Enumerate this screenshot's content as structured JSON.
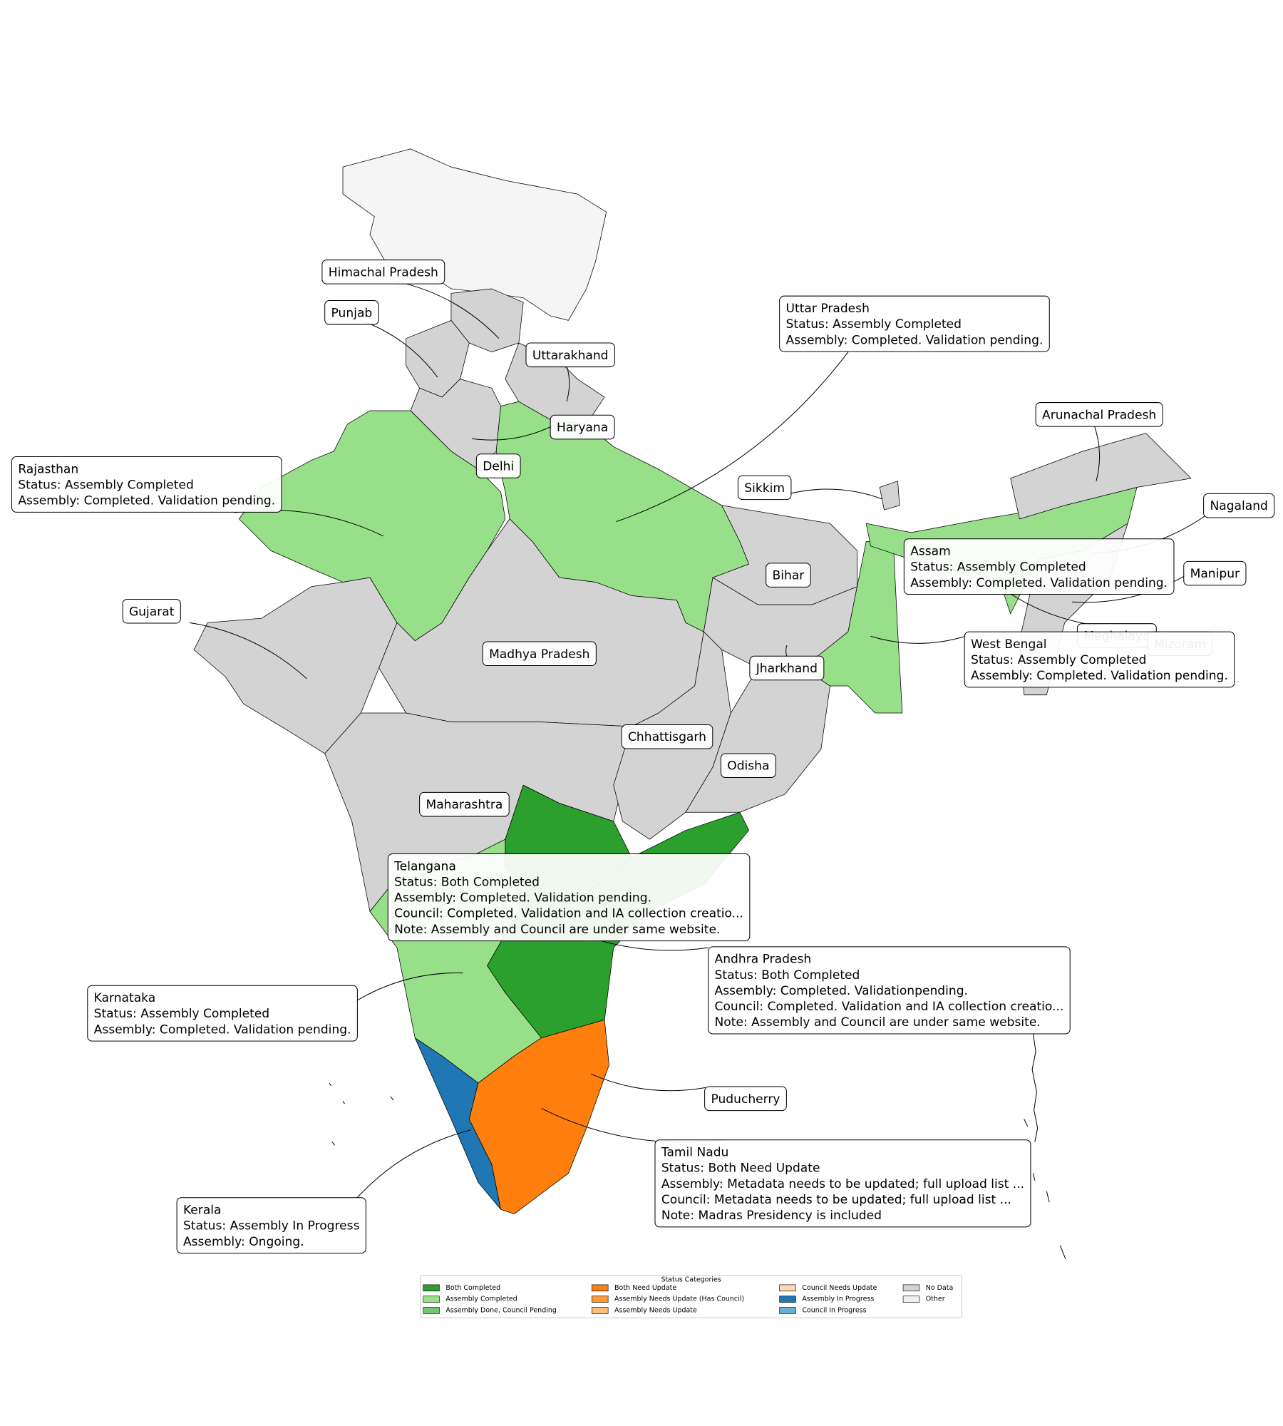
{
  "callouts": [
    {
      "title": "Himachal Pradesh",
      "lines": []
    },
    {
      "title": "Punjab",
      "lines": []
    },
    {
      "title": "Uttarakhand",
      "lines": []
    },
    {
      "title": "Uttar Pradesh",
      "lines": [
        "Status: Assembly Completed",
        "Assembly: Completed. Validation  pending."
      ]
    },
    {
      "title": "Haryana",
      "lines": []
    },
    {
      "title": "Delhi",
      "lines": []
    },
    {
      "title": "Rajasthan",
      "lines": [
        "Status: Assembly Completed",
        "Assembly: Completed. Validation pending."
      ]
    },
    {
      "title": "Sikkim",
      "lines": []
    },
    {
      "title": "Arunachal Pradesh",
      "lines": []
    },
    {
      "title": "Nagaland",
      "lines": []
    },
    {
      "title": "Assam",
      "lines": [
        "Status: Assembly Completed",
        "Assembly: Completed. Validation pending."
      ]
    },
    {
      "title": "Manipur",
      "lines": []
    },
    {
      "title": "Bihar",
      "lines": []
    },
    {
      "title": "Gujarat",
      "lines": []
    },
    {
      "title": "Madhya Pradesh",
      "lines": []
    },
    {
      "title": "Meghalaya",
      "lines": []
    },
    {
      "title": "Mizoram",
      "lines": []
    },
    {
      "title": "West Bengal",
      "lines": [
        "Status: Assembly Completed",
        "Assembly: Completed. Validation  pending."
      ]
    },
    {
      "title": "Jharkhand",
      "lines": []
    },
    {
      "title": "Chhattisgarh",
      "lines": []
    },
    {
      "title": "Odisha",
      "lines": []
    },
    {
      "title": "Maharashtra",
      "lines": []
    },
    {
      "title": "Telangana",
      "lines": [
        "Status: Both Completed",
        "Assembly: Completed. Validation  pending.",
        "Council: Completed. Validation and IA collection creatio...",
        "Note: Assembly and Council are under same website."
      ]
    },
    {
      "title": "Andhra Pradesh",
      "lines": [
        "Status: Both Completed",
        "Assembly: Completed. Validationpending.",
        "Council: Completed. Validation and IA collection creatio...",
        "Note: Assembly and Council are under same website."
      ]
    },
    {
      "title": "Karnataka",
      "lines": [
        "Status: Assembly Completed",
        "Assembly: Completed. Validation  pending."
      ]
    },
    {
      "title": "Puducherry",
      "lines": []
    },
    {
      "title": "Tamil Nadu",
      "lines": [
        "Status: Both Need Update",
        "Assembly: Metadata needs to be updated; full upload list ...",
        "Council: Metadata needs to be updated; full upload list ...",
        "Note: Madras Presidency is included"
      ]
    },
    {
      "title": "Kerala",
      "lines": [
        "Status: Assembly In Progress",
        "Assembly: Ongoing."
      ]
    }
  ],
  "legend": {
    "title": "Status Categories",
    "items": [
      {
        "label": "Both Completed",
        "color": "#2ca02c"
      },
      {
        "label": "Assembly Completed",
        "color": "#98df8a"
      },
      {
        "label": "Assembly Done, Council Pending",
        "color": "#74c476"
      },
      {
        "label": "Both Need Update",
        "color": "#ff7f0e"
      },
      {
        "label": "Assembly Needs Update (Has Council)",
        "color": "#ff9933"
      },
      {
        "label": "Assembly Needs Update",
        "color": "#ffbb78"
      },
      {
        "label": "Council Needs Update",
        "color": "#ffd8b0"
      },
      {
        "label": "Assembly In Progress",
        "color": "#1f77b4"
      },
      {
        "label": "Council In Progress",
        "color": "#6baed6"
      },
      {
        "label": "No Data",
        "color": "#d3d3d3"
      },
      {
        "label": "Other",
        "color": "#f0f0f0"
      }
    ]
  }
}
